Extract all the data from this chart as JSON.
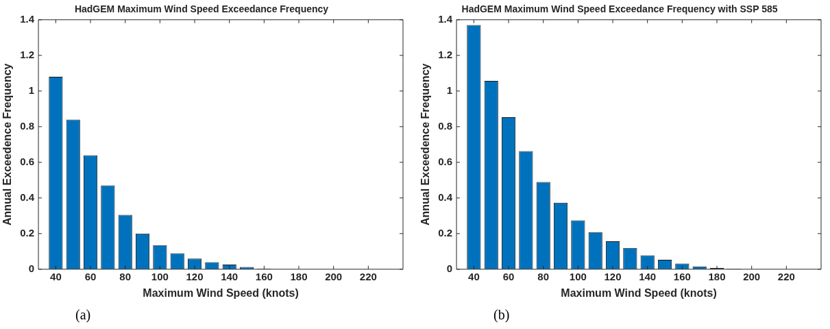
{
  "chart_data": [
    {
      "type": "bar",
      "title": "HadGEM Maximum Wind Speed Exceedance Frequency",
      "xlabel": "Maximum Wind Speed (knots)",
      "ylabel": "Annual Exceedence Frequency",
      "x": [
        40,
        50,
        60,
        70,
        80,
        90,
        100,
        110,
        120,
        130,
        140,
        150,
        160
      ],
      "values": [
        1.08,
        0.84,
        0.64,
        0.47,
        0.305,
        0.2,
        0.135,
        0.09,
        0.06,
        0.04,
        0.026,
        0.013,
        0.004
      ],
      "color": "#0072bd",
      "xlim": [
        30,
        240
      ],
      "xticks": [
        40,
        60,
        80,
        100,
        120,
        140,
        160,
        180,
        200,
        220
      ],
      "ylim": [
        0,
        1.4
      ],
      "yticks": [
        0,
        0.2,
        0.4,
        0.6,
        0.8,
        1,
        1.2,
        1.4
      ],
      "grid": false,
      "legend": false,
      "annotations": [
        "(a)"
      ]
    },
    {
      "type": "bar",
      "title": "HadGEM Maximum Wind Speed Exceedance Frequency with SSP 585",
      "xlabel": "Maximum Wind Speed (knots)",
      "ylabel": "Annual Exceedence Frequency",
      "x": [
        40,
        50,
        60,
        70,
        80,
        90,
        100,
        110,
        120,
        130,
        140,
        150,
        160,
        170,
        180,
        190
      ],
      "values": [
        1.37,
        1.057,
        0.853,
        0.663,
        0.49,
        0.373,
        0.274,
        0.208,
        0.157,
        0.119,
        0.078,
        0.053,
        0.032,
        0.016,
        0.007,
        0.003
      ],
      "color": "#0072bd",
      "xlim": [
        30,
        240
      ],
      "xticks": [
        40,
        60,
        80,
        100,
        120,
        140,
        160,
        180,
        200,
        220
      ],
      "ylim": [
        0,
        1.4
      ],
      "yticks": [
        0,
        0.2,
        0.4,
        0.6,
        0.8,
        1,
        1.2,
        1.4
      ],
      "grid": false,
      "legend": false,
      "annotations": [
        "(b)"
      ]
    }
  ]
}
